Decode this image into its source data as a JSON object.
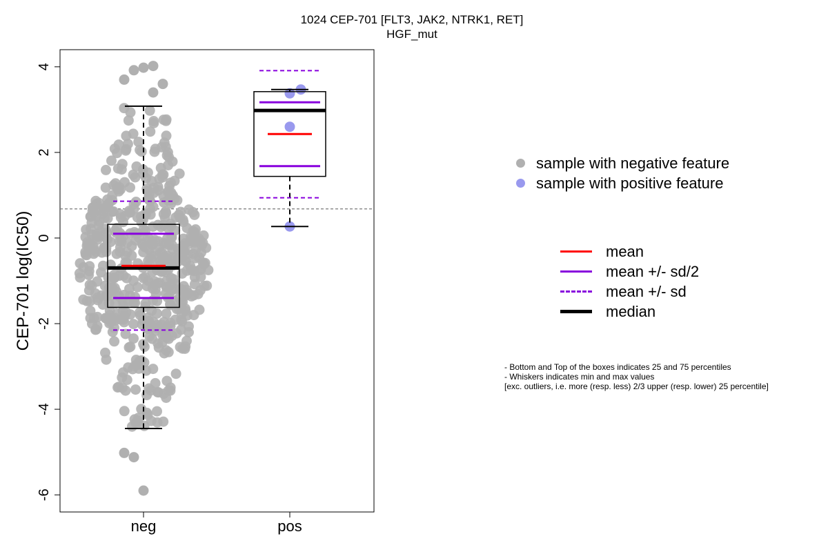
{
  "chart_data": {
    "type": "boxplot",
    "title": "1024 CEP-701 [FLT3, JAK2, NTRK1, RET]",
    "subtitle": "HGF_mut",
    "ylabel": "CEP-701 log(IC50)",
    "xlabel": "",
    "categories": [
      "neg",
      "pos"
    ],
    "ylim": [
      -6.4,
      4.4
    ],
    "yticks": [
      -6,
      -4,
      -2,
      0,
      2,
      4
    ],
    "threshold_line": 0.68,
    "groups": [
      {
        "name": "neg",
        "color": "#b0b0b0",
        "n_points": 560,
        "median": -0.7,
        "q1": -1.62,
        "q3": 0.32,
        "whisker_low": -4.45,
        "whisker_high": 3.08,
        "mean": -0.65,
        "mean_minus_half_sd": -1.4,
        "mean_plus_half_sd": 0.1,
        "mean_minus_sd": -2.15,
        "mean_plus_sd": 0.86,
        "outliers": [
          -5.02,
          -5.12,
          -5.9,
          3.4,
          3.6,
          3.7,
          3.92,
          3.98,
          4.02
        ]
      },
      {
        "name": "pos",
        "color": "#9999ee",
        "n_points": 4,
        "points": [
          0.27,
          2.6,
          3.38,
          3.47
        ],
        "median": 2.98,
        "q1": 1.44,
        "q3": 3.42,
        "whisker_low": 0.27,
        "whisker_high": 3.47,
        "mean": 2.43,
        "mean_minus_half_sd": 1.68,
        "mean_plus_half_sd": 3.17,
        "mean_minus_sd": 0.94,
        "mean_plus_sd": 3.91
      }
    ]
  },
  "legend": {
    "points": [
      {
        "label": "sample with negative feature",
        "color": "#b0b0b0"
      },
      {
        "label": "sample with positive feature",
        "color": "#9999ee"
      }
    ],
    "lines": [
      {
        "label": "mean",
        "color": "#ff0000",
        "style": "solid"
      },
      {
        "label": "mean +/- sd/2",
        "color": "#8800dd",
        "style": "solid"
      },
      {
        "label": "mean +/- sd",
        "color": "#8800dd",
        "style": "dashed"
      },
      {
        "label": "median",
        "color": "#000000",
        "style": "thick"
      }
    ]
  },
  "notes": [
    "- Bottom and Top of the boxes indicates 25 and 75 percentiles",
    "- Whiskers indicates min and max values",
    "[exc. outliers, i.e. more (resp. less) 2/3 upper (resp. lower) 25 percentile]"
  ]
}
